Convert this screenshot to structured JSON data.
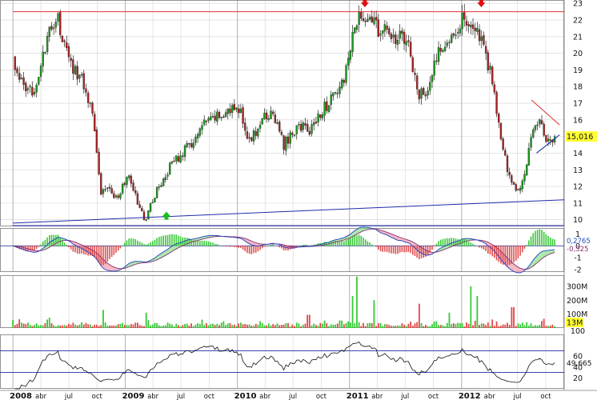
{
  "chart_data": [
    {
      "panel": "price",
      "type": "candlestick",
      "ylim": [
        9.6,
        23.2
      ],
      "y_ticks": [
        "23",
        "22",
        "21",
        "20",
        "19",
        "18",
        "17",
        "16",
        "15",
        "14",
        "13",
        "12",
        "11",
        "10"
      ],
      "last_price": "15,016",
      "x_ticks": [
        "2008",
        "abr",
        "jul",
        "oct",
        "2009",
        "abr",
        "jul",
        "oct",
        "2010",
        "abr",
        "jul",
        "oct",
        "2011",
        "abr",
        "jul",
        "oct",
        "2012",
        "abr",
        "jul",
        "oct"
      ],
      "anchors": [
        {
          "d": "2008-01-01",
          "c": 19.6
        },
        {
          "d": "2008-02-15",
          "c": 17.4
        },
        {
          "d": "2008-03-20",
          "c": 18.3
        },
        {
          "d": "2008-05-05",
          "c": 21.6
        },
        {
          "d": "2008-05-25",
          "c": 22.1
        },
        {
          "d": "2008-07-01",
          "c": 19.5
        },
        {
          "d": "2008-08-15",
          "c": 18.4
        },
        {
          "d": "2008-09-20",
          "c": 16.2
        },
        {
          "d": "2008-10-15",
          "c": 11.5
        },
        {
          "d": "2008-11-01",
          "c": 12.1
        },
        {
          "d": "2008-12-01",
          "c": 11.3
        },
        {
          "d": "2009-01-15",
          "c": 12.6
        },
        {
          "d": "2009-02-15",
          "c": 10.7
        },
        {
          "d": "2009-03-05",
          "c": 10.0
        },
        {
          "d": "2009-04-15",
          "c": 11.8
        },
        {
          "d": "2009-06-01",
          "c": 13.4
        },
        {
          "d": "2009-08-01",
          "c": 14.5
        },
        {
          "d": "2009-09-15",
          "c": 15.7
        },
        {
          "d": "2009-11-15",
          "c": 16.4
        },
        {
          "d": "2010-01-10",
          "c": 16.7
        },
        {
          "d": "2010-02-10",
          "c": 14.6
        },
        {
          "d": "2010-03-15",
          "c": 15.8
        },
        {
          "d": "2010-04-25",
          "c": 16.5
        },
        {
          "d": "2010-06-01",
          "c": 14.5
        },
        {
          "d": "2010-07-20",
          "c": 15.7
        },
        {
          "d": "2010-08-25",
          "c": 15.3
        },
        {
          "d": "2010-10-01",
          "c": 16.6
        },
        {
          "d": "2010-11-15",
          "c": 17.4
        },
        {
          "d": "2010-12-20",
          "c": 18.8
        },
        {
          "d": "2011-01-20",
          "c": 21.8
        },
        {
          "d": "2011-02-20",
          "c": 22.4
        },
        {
          "d": "2011-04-01",
          "c": 21.5
        },
        {
          "d": "2011-05-15",
          "c": 21.1
        },
        {
          "d": "2011-07-10",
          "c": 20.7
        },
        {
          "d": "2011-08-10",
          "c": 17.5
        },
        {
          "d": "2011-09-10",
          "c": 17.6
        },
        {
          "d": "2011-10-20",
          "c": 20.3
        },
        {
          "d": "2011-12-01",
          "c": 21.2
        },
        {
          "d": "2012-01-10",
          "c": 22.2
        },
        {
          "d": "2012-02-10",
          "c": 21.6
        },
        {
          "d": "2012-03-10",
          "c": 20.4
        },
        {
          "d": "2012-04-10",
          "c": 18.4
        },
        {
          "d": "2012-05-15",
          "c": 14.1
        },
        {
          "d": "2012-06-10",
          "c": 12.2
        },
        {
          "d": "2012-07-10",
          "c": 11.8
        },
        {
          "d": "2012-07-25",
          "c": 12.6
        },
        {
          "d": "2012-08-20",
          "c": 15.5
        },
        {
          "d": "2012-09-10",
          "c": 16.2
        },
        {
          "d": "2012-10-10",
          "c": 14.6
        },
        {
          "d": "2012-10-30",
          "c": 15.0
        }
      ],
      "resistance": {
        "from": {
          "d": "2008-01-01",
          "v": 22.5
        },
        "to": {
          "d": "2012-11-30",
          "v": 22.5
        }
      },
      "support_trend": {
        "from": {
          "d": "2008-01-01",
          "v": 9.8
        },
        "to": {
          "d": "2012-11-30",
          "v": 11.2
        }
      },
      "support_low": {
        "from": {
          "d": "2008-01-01",
          "v": 9.65
        },
        "to": {
          "d": "2012-11-30",
          "v": 9.65
        }
      },
      "triangle_upper": {
        "from": {
          "d": "2012-08-15",
          "v": 17.2
        },
        "to": {
          "d": "2012-11-15",
          "v": 15.7
        }
      },
      "triangle_lower": {
        "from": {
          "d": "2012-09-01",
          "v": 14.0
        },
        "to": {
          "d": "2012-11-15",
          "v": 15.1
        }
      },
      "markers": [
        {
          "type": "down-arrow",
          "color": "#e01010",
          "d": "2011-02-20",
          "v": 23.0
        },
        {
          "type": "down-arrow",
          "color": "#e01010",
          "d": "2012-03-05",
          "v": 23.0
        },
        {
          "type": "up-arrow",
          "color": "#18c018",
          "d": "2009-05-15",
          "v": 10.2
        }
      ]
    },
    {
      "panel": "macd",
      "type": "line",
      "ylim": [
        -2.2,
        1.5
      ],
      "y_ticks": [
        "1",
        "0",
        "-1",
        "-2"
      ],
      "labels": [
        "0,2765",
        "-0,325"
      ]
    },
    {
      "panel": "volume",
      "type": "bar",
      "ylim": [
        0,
        380
      ],
      "y_ticks": [
        "300M",
        "200M",
        "100M"
      ],
      "last_value": "13M",
      "spikes": [
        {
          "d": "2008-10-20",
          "v": 130
        },
        {
          "d": "2009-03-10",
          "v": 110
        },
        {
          "d": "2010-08-20",
          "v": 95
        },
        {
          "d": "2011-01-10",
          "v": 230
        },
        {
          "d": "2011-01-25",
          "v": 370
        },
        {
          "d": "2011-03-20",
          "v": 200
        },
        {
          "d": "2011-08-15",
          "v": 175
        },
        {
          "d": "2011-11-20",
          "v": 110
        },
        {
          "d": "2012-02-01",
          "v": 300
        },
        {
          "d": "2012-02-20",
          "v": 230
        },
        {
          "d": "2012-06-15",
          "v": 150
        }
      ]
    },
    {
      "panel": "rsi",
      "type": "line",
      "ylim": [
        0,
        100
      ],
      "y_ticks": [
        "100",
        "60",
        "40",
        "20"
      ],
      "last_value": "49,665",
      "levels": [
        70,
        30
      ]
    }
  ],
  "colors": {
    "up": "#1a9c1a",
    "down": "#b02020",
    "macd_line": "#2040c0",
    "signal_line": "#8a3070",
    "hist_up": "#3cc83c",
    "hist_down": "#e05050",
    "trend_blue": "#1c2ca8",
    "resistance_red": "#e03030",
    "grid": "#d4d4d4",
    "year_grid": "#b0b0b0",
    "label_bg": "#ffff33"
  }
}
